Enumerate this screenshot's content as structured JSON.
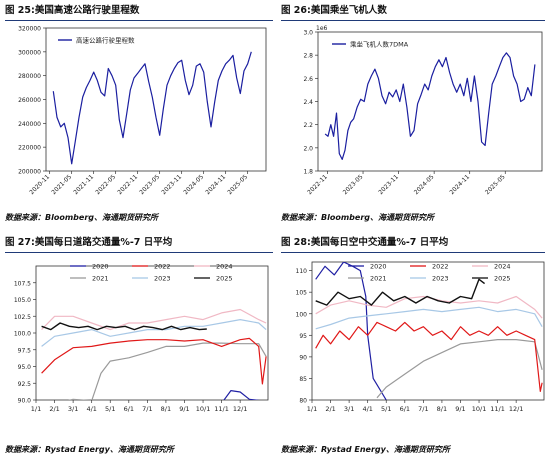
{
  "charts": [
    {
      "id": "p25",
      "title": "图 25:美国高速公路行驶里程数",
      "source": "数据来源：Bloomberg、海通期货研究所",
      "chart_data": {
        "type": "line",
        "title": "图 25:美国高速公路行驶里程数",
        "ylim": [
          200000,
          320000
        ],
        "yticks": [
          200000,
          220000,
          240000,
          260000,
          280000,
          300000,
          320000
        ],
        "xlim": [
          2020.75,
          2025.75
        ],
        "xtick_labels": [
          "2020-11",
          "2021-05",
          "2021-11",
          "2022-05",
          "2022-11",
          "2023-05",
          "2023-11",
          "2024-05",
          "2024-11",
          "2025-05"
        ],
        "grid": false,
        "legend_position": "top-left",
        "series": [
          {
            "name": "高速公路行驶里程数",
            "color": "#1b1fa0",
            "x": [
              2020.917,
              2021.0,
              2021.083,
              2021.167,
              2021.25,
              2021.333,
              2021.417,
              2021.5,
              2021.583,
              2021.667,
              2021.75,
              2021.833,
              2021.917,
              2022.0,
              2022.083,
              2022.167,
              2022.25,
              2022.333,
              2022.417,
              2022.5,
              2022.583,
              2022.667,
              2022.75,
              2022.833,
              2022.917,
              2023.0,
              2023.083,
              2023.167,
              2023.25,
              2023.333,
              2023.417,
              2023.5,
              2023.583,
              2023.667,
              2023.75,
              2023.833,
              2023.917,
              2024.0,
              2024.083,
              2024.167,
              2024.25,
              2024.333,
              2024.417,
              2024.5,
              2024.583,
              2024.667,
              2024.75,
              2024.833,
              2024.917,
              2025.0,
              2025.083,
              2025.167,
              2025.25,
              2025.333,
              2025.417
            ],
            "y": [
              267000,
              245000,
              237000,
              240000,
              228000,
              206000,
              225000,
              245000,
              262000,
              270000,
              276000,
              283000,
              276000,
              266000,
              263000,
              286000,
              280000,
              272000,
              243000,
              228000,
              248000,
              268000,
              278000,
              282000,
              286000,
              290000,
              275000,
              262000,
              245000,
              230000,
              252000,
              272000,
              280000,
              286000,
              291000,
              293000,
              276000,
              264000,
              272000,
              288000,
              290000,
              283000,
              258000,
              237000,
              258000,
              276000,
              284000,
              290000,
              293000,
              297000,
              278000,
              265000,
              284000,
              290000,
              300000
            ]
          }
        ]
      }
    },
    {
      "id": "p26",
      "title": "图 26:美国乘坐飞机人数",
      "source": "数据来源：Bloomberg、海通期货研究所",
      "chart_data": {
        "type": "line",
        "title": "图 26:美国乘坐飞机人数",
        "offset_label": "1e6",
        "ylim": [
          1.8,
          3.0
        ],
        "yticks": [
          1.8,
          2.0,
          2.2,
          2.4,
          2.6,
          2.8,
          3.0
        ],
        "xlim": [
          2022.7,
          2025.85
        ],
        "xtick_labels": [
          "2022-11",
          "2023-05",
          "2023-11",
          "2024-05",
          "2024-11",
          "2025-05"
        ],
        "grid": false,
        "legend_position": "top-left",
        "series": [
          {
            "name": "乘坐飞机人数7DMA",
            "color": "#1b1fa0",
            "x": [
              2022.8,
              2022.84,
              2022.88,
              2022.92,
              2022.96,
              2023.0,
              2023.04,
              2023.08,
              2023.12,
              2023.16,
              2023.2,
              2023.25,
              2023.3,
              2023.35,
              2023.4,
              2023.45,
              2023.5,
              2023.55,
              2023.6,
              2023.65,
              2023.7,
              2023.75,
              2023.8,
              2023.85,
              2023.9,
              2023.95,
              2024.0,
              2024.05,
              2024.1,
              2024.15,
              2024.2,
              2024.25,
              2024.3,
              2024.35,
              2024.4,
              2024.45,
              2024.5,
              2024.55,
              2024.6,
              2024.65,
              2024.7,
              2024.75,
              2024.8,
              2024.85,
              2024.9,
              2024.95,
              2025.0,
              2025.05,
              2025.1,
              2025.15,
              2025.2,
              2025.25,
              2025.3,
              2025.35,
              2025.4,
              2025.45,
              2025.5,
              2025.55,
              2025.6,
              2025.65,
              2025.7,
              2025.75
            ],
            "y": [
              2.12,
              2.1,
              2.2,
              2.1,
              2.3,
              1.95,
              1.9,
              1.98,
              2.15,
              2.22,
              2.25,
              2.35,
              2.42,
              2.4,
              2.55,
              2.62,
              2.68,
              2.6,
              2.45,
              2.38,
              2.48,
              2.44,
              2.5,
              2.4,
              2.55,
              2.35,
              2.1,
              2.15,
              2.38,
              2.46,
              2.55,
              2.5,
              2.62,
              2.7,
              2.76,
              2.7,
              2.78,
              2.65,
              2.55,
              2.48,
              2.55,
              2.45,
              2.6,
              2.4,
              2.62,
              2.4,
              2.05,
              2.02,
              2.3,
              2.55,
              2.62,
              2.7,
              2.78,
              2.82,
              2.78,
              2.62,
              2.55,
              2.4,
              2.42,
              2.52,
              2.45,
              2.72
            ]
          }
        ]
      }
    },
    {
      "id": "p27",
      "title": "图 27:美国每日道路交通量%-7 日平均",
      "source": "数据来源：Rystad Energy、海通期货研究所",
      "chart_data": {
        "type": "line",
        "title": "图 27:美国每日道路交通量%-7 日平均",
        "ylim": [
          90,
          110
        ],
        "yticks": [
          90.0,
          92.5,
          95.0,
          97.5,
          100.0,
          102.5,
          105.0,
          107.5
        ],
        "xlim": [
          0,
          12.5
        ],
        "xtick_labels": [
          "1/1",
          "2/1",
          "3/1",
          "4/1",
          "5/1",
          "6/1",
          "7/1",
          "8/1",
          "9/1",
          "10/1",
          "11/1",
          "12/1"
        ],
        "grid": false,
        "legend_position": "top",
        "series": [
          {
            "name": "2020",
            "color": "#1f1fa3",
            "x": [
              0.2,
              1.0,
              2.0,
              2.5,
              3.2,
              6.0,
              7.0,
              8.0,
              9.0,
              10.0,
              10.5,
              11.0,
              11.5,
              12.4
            ],
            "y": [
              89.6,
              89.7,
              89.5,
              89.4,
              89.2,
              89.3,
              89.1,
              89.2,
              89.4,
              89.5,
              91.4,
              91.2,
              90.1,
              89.8
            ]
          },
          {
            "name": "2021",
            "color": "#9a9a9a",
            "x": [
              1.0,
              2.0,
              3.0,
              3.5,
              4.0,
              5.0,
              6.0,
              7.0,
              8.0,
              9.0,
              10.0,
              11.0,
              12.0,
              12.4
            ],
            "y": [
              89.4,
              90.1,
              89.9,
              94.0,
              95.8,
              96.3,
              97.1,
              98.0,
              98.0,
              98.5,
              98.5,
              98.4,
              98.4,
              96.5
            ]
          },
          {
            "name": "2022",
            "color": "#e01818",
            "x": [
              0.3,
              1.0,
              2.0,
              3.0,
              4.0,
              5.0,
              6.0,
              7.0,
              8.0,
              9.0,
              10.0,
              11.0,
              11.5,
              12.0,
              12.2,
              12.4
            ],
            "y": [
              94.0,
              96.0,
              97.8,
              98.0,
              98.5,
              98.8,
              99.0,
              99.0,
              98.8,
              99.0,
              98.0,
              99.0,
              99.2,
              98.0,
              92.4,
              96.5
            ]
          },
          {
            "name": "2023",
            "color": "#a8c8e6",
            "x": [
              0.3,
              1.0,
              2.0,
              3.0,
              4.0,
              5.0,
              6.0,
              7.0,
              8.0,
              9.0,
              10.0,
              11.0,
              12.0,
              12.4
            ],
            "y": [
              98.0,
              99.5,
              100.0,
              100.5,
              99.5,
              100.0,
              100.5,
              100.5,
              101.0,
              101.0,
              101.5,
              102.0,
              101.5,
              100.5
            ]
          },
          {
            "name": "2024",
            "color": "#f0b8c4",
            "x": [
              0.3,
              1.0,
              2.0,
              3.0,
              4.0,
              5.0,
              6.0,
              7.0,
              8.0,
              9.0,
              10.0,
              11.0,
              12.0,
              12.4
            ],
            "y": [
              100.5,
              102.5,
              102.5,
              101.5,
              100.5,
              101.5,
              101.5,
              102.0,
              102.5,
              102.0,
              103.0,
              103.5,
              102.0,
              101.5
            ]
          },
          {
            "name": "2025",
            "color": "#111111",
            "x": [
              0.3,
              0.8,
              1.3,
              1.8,
              2.3,
              2.8,
              3.3,
              3.8,
              4.3,
              4.8,
              5.3,
              5.8,
              6.3,
              6.8,
              7.3,
              7.8,
              8.3,
              8.8,
              9.2
            ],
            "y": [
              101.0,
              100.5,
              101.5,
              101.0,
              100.8,
              101.0,
              100.5,
              101.0,
              100.8,
              101.0,
              100.5,
              101.0,
              100.8,
              100.5,
              101.0,
              100.5,
              100.8,
              100.5,
              100.6
            ]
          }
        ]
      }
    },
    {
      "id": "p28",
      "title": "图 28:美国每日空中交通量%-7 日平均",
      "source": "数据来源：Rystad Energy、海通期货研究所",
      "chart_data": {
        "type": "line",
        "title": "图 28:美国每日空中交通量%-7 日平均",
        "ylim": [
          80,
          112
        ],
        "yticks": [
          80,
          85,
          90,
          95,
          100,
          105,
          110
        ],
        "xlim": [
          0,
          12.5
        ],
        "xtick_labels": [
          "1/1",
          "2/1",
          "3/1",
          "4/1",
          "5/1",
          "6/1",
          "7/1",
          "8/1",
          "9/1",
          "10/1",
          "11/1",
          "12/1"
        ],
        "grid": false,
        "legend_position": "top",
        "series": [
          {
            "name": "2020",
            "color": "#1f1fa3",
            "x": [
              0.2,
              0.7,
              1.2,
              1.7,
              2.2,
              2.6,
              2.9,
              3.0,
              3.3,
              4.0
            ],
            "y": [
              108,
              111,
              109,
              112,
              111,
              110,
              104,
              95,
              85,
              80
            ]
          },
          {
            "name": "2021",
            "color": "#9a9a9a",
            "x": [
              3.5,
              4.0,
              5.0,
              6.0,
              7.0,
              8.0,
              9.0,
              10.0,
              11.0,
              12.0,
              12.4
            ],
            "y": [
              80.5,
              83.0,
              86.0,
              89.0,
              91.0,
              93.0,
              93.5,
              94.0,
              94.0,
              93.5,
              87.0
            ]
          },
          {
            "name": "2022",
            "color": "#e01818",
            "x": [
              0.2,
              0.6,
              1.0,
              1.5,
              2.0,
              2.5,
              3.0,
              3.5,
              4.0,
              4.5,
              5.0,
              5.5,
              6.0,
              6.5,
              7.0,
              7.5,
              8.0,
              8.5,
              9.0,
              9.5,
              10.0,
              10.5,
              11.0,
              11.5,
              12.0,
              12.3,
              12.4
            ],
            "y": [
              92.0,
              95.0,
              93.0,
              96.0,
              94.0,
              97.0,
              95.0,
              98.0,
              97.0,
              96.0,
              98.0,
              96.0,
              97.0,
              95.0,
              96.0,
              94.0,
              97.0,
              95.0,
              96.0,
              95.0,
              97.0,
              95.0,
              96.0,
              95.0,
              94.0,
              82.0,
              84.0
            ]
          },
          {
            "name": "2023",
            "color": "#a8c8e6",
            "x": [
              0.2,
              1.0,
              2.0,
              3.0,
              4.0,
              5.0,
              6.0,
              7.0,
              8.0,
              9.0,
              10.0,
              11.0,
              12.0,
              12.4
            ],
            "y": [
              96.5,
              97.5,
              99.0,
              99.5,
              100.0,
              100.5,
              101.0,
              100.5,
              101.0,
              101.5,
              100.5,
              101.0,
              100.0,
              97.0
            ]
          },
          {
            "name": "2024",
            "color": "#f0b8c4",
            "x": [
              0.2,
              1.0,
              2.0,
              3.0,
              4.0,
              5.0,
              6.0,
              7.0,
              8.0,
              9.0,
              10.0,
              11.0,
              12.0,
              12.4
            ],
            "y": [
              100.0,
              102.0,
              103.0,
              102.0,
              101.5,
              103.5,
              104.0,
              103.0,
              102.5,
              103.0,
              102.5,
              104.0,
              101.0,
              99.0
            ]
          },
          {
            "name": "2025",
            "color": "#111111",
            "x": [
              0.2,
              0.8,
              1.4,
              2.0,
              2.6,
              3.2,
              3.8,
              4.4,
              5.0,
              5.6,
              6.2,
              6.8,
              7.4,
              8.0,
              8.6,
              9.0,
              9.3
            ],
            "y": [
              103.0,
              102.0,
              105.0,
              103.5,
              104.0,
              102.0,
              105.0,
              103.0,
              104.0,
              102.5,
              104.0,
              103.0,
              102.5,
              104.0,
              103.5,
              108.0,
              107.0
            ]
          }
        ]
      }
    }
  ]
}
